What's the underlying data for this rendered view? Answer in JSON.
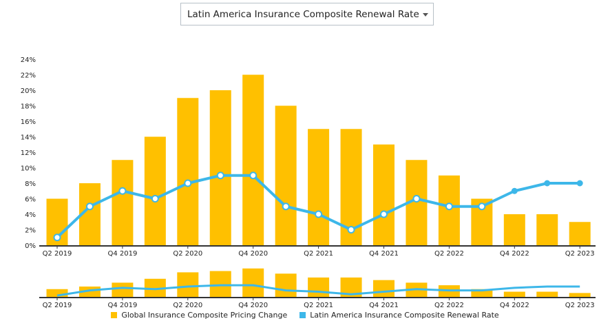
{
  "selector": {
    "selected": "Latin America Insurance Composite Renewal Rate"
  },
  "colors": {
    "bars": "#FFC000",
    "line": "#3DB7E9",
    "axis": "#333333"
  },
  "chart_data": {
    "type": "bar",
    "categories": [
      "Q2 2019",
      "Q3 2019",
      "Q4 2019",
      "Q1 2020",
      "Q2 2020",
      "Q3 2020",
      "Q4 2020",
      "Q1 2021",
      "Q2 2021",
      "Q3 2021",
      "Q4 2021",
      "Q1 2022",
      "Q2 2022",
      "Q3 2022",
      "Q4 2022",
      "Q1 2023",
      "Q2 2023"
    ],
    "x_tick_labels": [
      "Q2 2019",
      "Q4 2019",
      "Q2 2020",
      "Q4 2020",
      "Q2 2021",
      "Q4 2021",
      "Q2 2022",
      "Q4 2022",
      "Q2 2023"
    ],
    "ylim": [
      0,
      24
    ],
    "y_ticks": [
      "0%",
      "2%",
      "4%",
      "6%",
      "8%",
      "10%",
      "12%",
      "14%",
      "16%",
      "18%",
      "20%",
      "22%",
      "24%"
    ],
    "grid": false,
    "legend_placement": "bottom-center",
    "series": [
      {
        "name": "Global Insurance Composite Pricing Change",
        "type": "bar",
        "values": [
          6,
          8,
          11,
          14,
          19,
          20,
          22,
          18,
          15,
          15,
          13,
          11,
          9,
          6,
          4,
          4,
          3
        ]
      },
      {
        "name": "Latin America Insurance Composite Renewal Rate",
        "type": "line",
        "values": [
          1,
          5,
          7,
          6,
          8,
          9,
          9,
          5,
          4,
          2,
          4,
          6,
          5,
          5,
          7,
          8,
          8
        ]
      }
    ]
  }
}
